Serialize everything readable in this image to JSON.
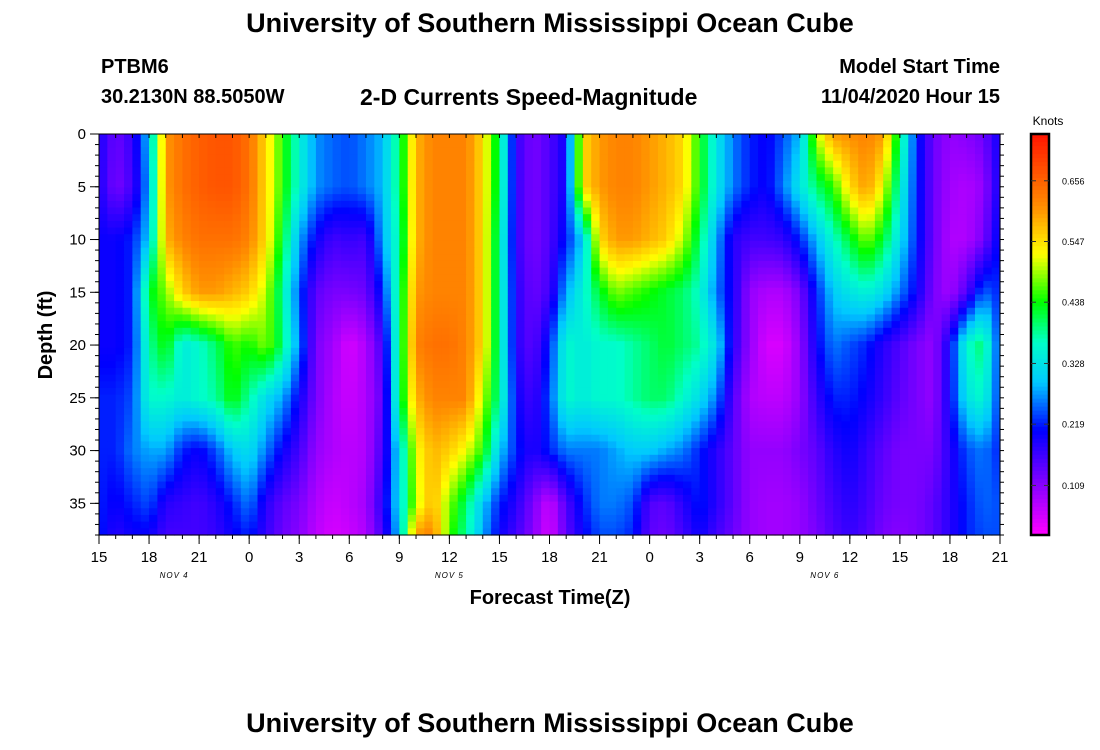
{
  "header": {
    "title": "University of Southern Mississippi Ocean Cube",
    "station_id": "PTBM6",
    "station_coords": "30.2130N 88.5050W",
    "plot_title": "2-D Currents Speed-Magnitude",
    "start_label": "Model Start Time",
    "start_value": "11/04/2020 Hour 15"
  },
  "footer": {
    "title": "University of Southern Mississippi Ocean Cube"
  },
  "chart_data": {
    "type": "heatmap",
    "title": "2-D Currents Speed-Magnitude",
    "xlabel": "Forecast Time(Z)",
    "ylabel": "Depth (ft)",
    "xlim": [
      0,
      54
    ],
    "ylim": [
      38,
      0
    ],
    "x_ticks": [
      {
        "t": 0,
        "label": "15"
      },
      {
        "t": 3,
        "label": "18"
      },
      {
        "t": 6,
        "label": "21"
      },
      {
        "t": 9,
        "label": "0"
      },
      {
        "t": 12,
        "label": "3"
      },
      {
        "t": 15,
        "label": "6"
      },
      {
        "t": 18,
        "label": "9"
      },
      {
        "t": 21,
        "label": "12"
      },
      {
        "t": 24,
        "label": "15"
      },
      {
        "t": 27,
        "label": "18"
      },
      {
        "t": 30,
        "label": "21"
      },
      {
        "t": 33,
        "label": "0"
      },
      {
        "t": 36,
        "label": "3"
      },
      {
        "t": 39,
        "label": "6"
      },
      {
        "t": 42,
        "label": "9"
      },
      {
        "t": 45,
        "label": "12"
      },
      {
        "t": 48,
        "label": "15"
      },
      {
        "t": 51,
        "label": "18"
      },
      {
        "t": 54,
        "label": "21"
      }
    ],
    "day_labels": [
      {
        "t": 4.5,
        "label": "NOV 4"
      },
      {
        "t": 21,
        "label": "NOV 5"
      },
      {
        "t": 43.5,
        "label": "NOV 6"
      }
    ],
    "y_ticks": [
      0,
      5,
      10,
      15,
      20,
      25,
      30,
      35
    ],
    "colorbar": {
      "title": "Knots",
      "range": [
        0.02,
        0.74
      ],
      "tick_values": [
        0.656,
        0.547,
        0.438,
        0.328,
        0.219,
        0.109
      ],
      "tick_labels": [
        "0.656",
        "0.547",
        "0.438",
        "0.328",
        "0.219",
        "0.109"
      ]
    },
    "depths": [
      0,
      5,
      10,
      15,
      20,
      25,
      30,
      35,
      38
    ],
    "times": [
      0,
      1,
      2,
      3,
      4,
      5,
      6,
      7,
      8,
      9,
      10,
      11,
      12,
      13,
      14,
      15,
      16,
      17,
      18,
      19,
      20,
      21,
      22,
      23,
      24,
      25,
      26,
      27,
      28,
      29,
      30,
      31,
      32,
      33,
      34,
      35,
      36,
      37,
      38,
      39,
      40,
      41,
      42,
      43,
      44,
      45,
      46,
      47,
      48,
      49,
      50,
      51,
      52,
      53,
      54
    ],
    "values": [
      [
        0.19,
        0.13,
        0.17,
        0.3,
        0.6,
        0.64,
        0.66,
        0.67,
        0.67,
        0.64,
        0.55,
        0.45,
        0.35,
        0.27,
        0.25,
        0.24,
        0.26,
        0.29,
        0.4,
        0.58,
        0.62,
        0.62,
        0.62,
        0.55,
        0.4,
        0.17,
        0.12,
        0.15,
        0.2,
        0.55,
        0.6,
        0.62,
        0.62,
        0.6,
        0.58,
        0.55,
        0.44,
        0.33,
        0.26,
        0.22,
        0.2,
        0.24,
        0.29,
        0.5,
        0.6,
        0.61,
        0.62,
        0.6,
        0.4,
        0.22,
        0.13,
        0.1,
        0.11,
        0.13,
        0.2
      ],
      [
        0.19,
        0.12,
        0.16,
        0.28,
        0.6,
        0.64,
        0.66,
        0.67,
        0.67,
        0.64,
        0.55,
        0.45,
        0.35,
        0.27,
        0.25,
        0.24,
        0.26,
        0.29,
        0.4,
        0.58,
        0.62,
        0.62,
        0.62,
        0.55,
        0.4,
        0.17,
        0.12,
        0.15,
        0.2,
        0.55,
        0.6,
        0.62,
        0.62,
        0.6,
        0.58,
        0.55,
        0.44,
        0.33,
        0.26,
        0.22,
        0.2,
        0.26,
        0.33,
        0.4,
        0.45,
        0.55,
        0.6,
        0.52,
        0.36,
        0.22,
        0.13,
        0.09,
        0.08,
        0.1,
        0.2
      ],
      [
        0.2,
        0.2,
        0.22,
        0.3,
        0.58,
        0.62,
        0.64,
        0.64,
        0.64,
        0.62,
        0.55,
        0.42,
        0.28,
        0.2,
        0.16,
        0.17,
        0.16,
        0.28,
        0.38,
        0.58,
        0.62,
        0.62,
        0.62,
        0.55,
        0.38,
        0.17,
        0.12,
        0.15,
        0.22,
        0.3,
        0.55,
        0.6,
        0.6,
        0.58,
        0.56,
        0.5,
        0.4,
        0.28,
        0.18,
        0.16,
        0.16,
        0.17,
        0.22,
        0.29,
        0.36,
        0.42,
        0.48,
        0.42,
        0.32,
        0.22,
        0.13,
        0.08,
        0.08,
        0.12,
        0.22
      ],
      [
        0.2,
        0.2,
        0.22,
        0.42,
        0.48,
        0.56,
        0.6,
        0.6,
        0.58,
        0.56,
        0.5,
        0.38,
        0.24,
        0.14,
        0.12,
        0.12,
        0.13,
        0.22,
        0.4,
        0.6,
        0.62,
        0.62,
        0.62,
        0.55,
        0.38,
        0.18,
        0.13,
        0.16,
        0.28,
        0.35,
        0.42,
        0.48,
        0.46,
        0.44,
        0.42,
        0.4,
        0.36,
        0.26,
        0.19,
        0.1,
        0.08,
        0.08,
        0.12,
        0.22,
        0.3,
        0.33,
        0.35,
        0.32,
        0.26,
        0.2,
        0.12,
        0.09,
        0.15,
        0.25,
        0.22
      ],
      [
        0.2,
        0.2,
        0.22,
        0.38,
        0.44,
        0.34,
        0.36,
        0.4,
        0.46,
        0.44,
        0.48,
        0.4,
        0.26,
        0.12,
        0.09,
        0.05,
        0.08,
        0.16,
        0.4,
        0.62,
        0.64,
        0.64,
        0.62,
        0.55,
        0.38,
        0.18,
        0.14,
        0.22,
        0.36,
        0.34,
        0.36,
        0.36,
        0.38,
        0.4,
        0.42,
        0.4,
        0.38,
        0.32,
        0.18,
        0.1,
        0.05,
        0.05,
        0.1,
        0.2,
        0.26,
        0.24,
        0.22,
        0.18,
        0.15,
        0.12,
        0.1,
        0.2,
        0.36,
        0.4,
        0.22
      ],
      [
        0.22,
        0.22,
        0.24,
        0.36,
        0.36,
        0.34,
        0.36,
        0.38,
        0.44,
        0.38,
        0.32,
        0.28,
        0.2,
        0.12,
        0.08,
        0.06,
        0.08,
        0.14,
        0.4,
        0.58,
        0.62,
        0.62,
        0.62,
        0.5,
        0.38,
        0.2,
        0.16,
        0.24,
        0.36,
        0.34,
        0.36,
        0.36,
        0.38,
        0.4,
        0.4,
        0.36,
        0.32,
        0.26,
        0.15,
        0.08,
        0.07,
        0.07,
        0.1,
        0.17,
        0.22,
        0.22,
        0.2,
        0.17,
        0.14,
        0.12,
        0.1,
        0.2,
        0.33,
        0.36,
        0.22
      ],
      [
        0.22,
        0.22,
        0.26,
        0.28,
        0.28,
        0.22,
        0.2,
        0.24,
        0.3,
        0.32,
        0.26,
        0.2,
        0.16,
        0.1,
        0.08,
        0.07,
        0.08,
        0.16,
        0.32,
        0.52,
        0.58,
        0.56,
        0.52,
        0.45,
        0.3,
        0.22,
        0.18,
        0.22,
        0.26,
        0.26,
        0.26,
        0.28,
        0.3,
        0.3,
        0.28,
        0.26,
        0.22,
        0.18,
        0.14,
        0.1,
        0.1,
        0.1,
        0.12,
        0.14,
        0.18,
        0.2,
        0.17,
        0.14,
        0.12,
        0.12,
        0.12,
        0.18,
        0.24,
        0.26,
        0.22
      ],
      [
        0.22,
        0.2,
        0.22,
        0.24,
        0.18,
        0.17,
        0.16,
        0.18,
        0.22,
        0.26,
        0.18,
        0.14,
        0.12,
        0.08,
        0.06,
        0.07,
        0.09,
        0.18,
        0.32,
        0.5,
        0.58,
        0.48,
        0.4,
        0.3,
        0.22,
        0.18,
        0.12,
        0.06,
        0.15,
        0.22,
        0.26,
        0.26,
        0.24,
        0.15,
        0.14,
        0.18,
        0.22,
        0.18,
        0.14,
        0.1,
        0.09,
        0.09,
        0.1,
        0.13,
        0.16,
        0.18,
        0.16,
        0.13,
        0.12,
        0.12,
        0.14,
        0.18,
        0.22,
        0.25,
        0.24
      ],
      [
        0.22,
        0.18,
        0.2,
        0.2,
        0.16,
        0.16,
        0.16,
        0.17,
        0.2,
        0.22,
        0.17,
        0.13,
        0.11,
        0.07,
        0.05,
        0.06,
        0.08,
        0.16,
        0.3,
        0.6,
        0.62,
        0.46,
        0.38,
        0.28,
        0.2,
        0.16,
        0.11,
        0.05,
        0.14,
        0.2,
        0.24,
        0.24,
        0.22,
        0.14,
        0.13,
        0.16,
        0.2,
        0.16,
        0.13,
        0.1,
        0.09,
        0.09,
        0.1,
        0.12,
        0.15,
        0.17,
        0.15,
        0.12,
        0.11,
        0.12,
        0.14,
        0.18,
        0.22,
        0.24,
        0.24
      ]
    ]
  }
}
